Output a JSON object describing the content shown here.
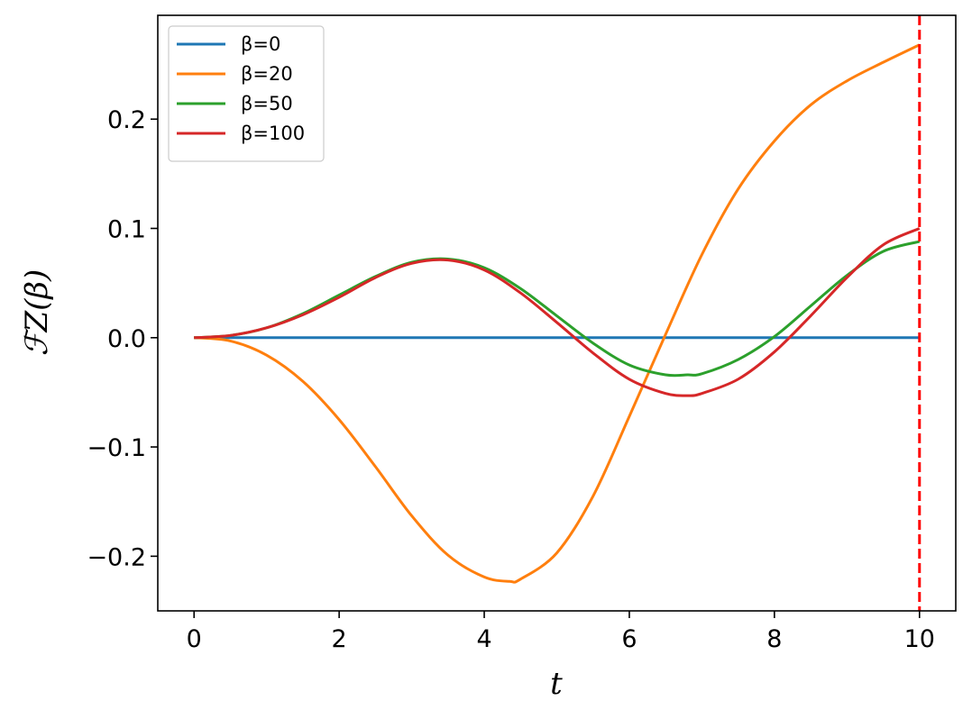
{
  "chart_data": {
    "type": "line",
    "title": "",
    "xlabel": "t",
    "ylabel": "ℱZ(β)",
    "xlim": [
      -0.5,
      10.5
    ],
    "ylim": [
      -0.25,
      0.295
    ],
    "xticks": [
      0,
      2,
      4,
      6,
      8,
      10
    ],
    "xtick_labels": [
      "0",
      "2",
      "4",
      "6",
      "8",
      "10"
    ],
    "yticks": [
      -0.2,
      -0.1,
      0.0,
      0.1,
      0.2
    ],
    "ytick_labels": [
      "−0.2",
      "−0.1",
      "0.0",
      "0.1",
      "0.2"
    ],
    "grid": false,
    "legend_position": "upper-left",
    "vline": {
      "x": 10,
      "color": "#ff0000",
      "style": "dashed"
    },
    "series": [
      {
        "name": "β=0",
        "color": "#1f77b4",
        "x": [
          0,
          0.5,
          1,
          1.5,
          2,
          2.5,
          3,
          3.5,
          4,
          4.5,
          5,
          5.5,
          6,
          6.5,
          7,
          7.5,
          8,
          8.5,
          9,
          9.5,
          10
        ],
        "y": [
          0,
          0,
          0,
          0,
          0,
          0,
          0,
          0,
          0,
          0,
          0,
          0,
          0,
          0,
          0,
          0,
          0,
          0,
          0,
          0,
          0
        ]
      },
      {
        "name": "β=20",
        "color": "#ff7f0e",
        "x": [
          0,
          0.5,
          1,
          1.5,
          2,
          2.5,
          3,
          3.5,
          4,
          4.35,
          4.5,
          5,
          5.5,
          6,
          6.5,
          7,
          7.5,
          8,
          8.5,
          9,
          9.5,
          10
        ],
        "y": [
          0,
          -0.003,
          -0.016,
          -0.04,
          -0.075,
          -0.118,
          -0.163,
          -0.199,
          -0.219,
          -0.223,
          -0.221,
          -0.197,
          -0.145,
          -0.072,
          0.003,
          0.076,
          0.136,
          0.18,
          0.213,
          0.235,
          0.252,
          0.268
        ]
      },
      {
        "name": "β=50",
        "color": "#2ca02c",
        "x": [
          0,
          0.5,
          1,
          1.5,
          2,
          2.5,
          3,
          3.5,
          4,
          4.5,
          5,
          5.5,
          6,
          6.5,
          6.8,
          7,
          7.5,
          8,
          8.5,
          9,
          9.5,
          10
        ],
        "y": [
          0,
          0.002,
          0.009,
          0.022,
          0.039,
          0.056,
          0.069,
          0.072,
          0.064,
          0.045,
          0.02,
          -0.005,
          -0.025,
          -0.034,
          -0.034,
          -0.033,
          -0.02,
          0.001,
          0.029,
          0.057,
          0.079,
          0.088
        ]
      },
      {
        "name": "β=100",
        "color": "#d62728",
        "x": [
          0,
          0.5,
          1,
          1.5,
          2,
          2.5,
          3,
          3.5,
          4,
          4.5,
          5,
          5.5,
          6,
          6.5,
          6.8,
          7,
          7.5,
          8,
          8.5,
          9,
          9.5,
          10
        ],
        "y": [
          0,
          0.002,
          0.009,
          0.021,
          0.037,
          0.055,
          0.068,
          0.071,
          0.062,
          0.041,
          0.014,
          -0.014,
          -0.038,
          -0.051,
          -0.053,
          -0.051,
          -0.038,
          -0.013,
          0.02,
          0.055,
          0.085,
          0.1
        ]
      }
    ]
  }
}
